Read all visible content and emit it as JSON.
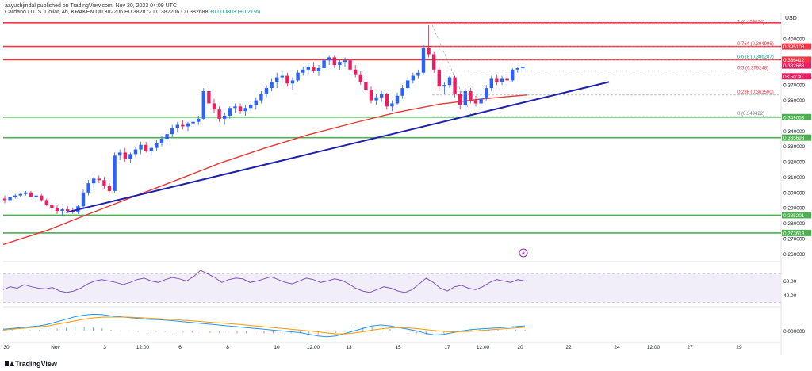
{
  "header": {
    "line1": "aayushjindal published on TradingView.com, Nov 20, 2023 04:09 UTC",
    "symbol": "Cardano / U. S. Dollar, 4h, KRAKEN",
    "ohlc": "O0.382206 H0.382872 L0.382206 C0.382688",
    "change": "+0.000803 (+0.21%)"
  },
  "axis_currency": "USD",
  "footer": {
    "brand": "TradingView"
  },
  "colors": {
    "up": "#2962ff",
    "down": "#e91e63",
    "resistance": "#f23645",
    "support": "#4caf50",
    "trendline": "#1e22aa",
    "ma": "#e53935",
    "rsi": "#7e57c2",
    "macd": "#2196f3",
    "signal": "#ff9800"
  },
  "chart_data": {
    "type": "candlestick",
    "x_ticks": [
      "30",
      "Nov",
      "3",
      "12:00",
      "6",
      "8",
      "10",
      "12:00",
      "13",
      "15",
      "17",
      "12:00",
      "20",
      "22",
      "24",
      "12:00",
      "27",
      "29"
    ],
    "y_ticks": [
      "0.400000",
      "0.370000",
      "0.360000",
      "0.340000",
      "0.330000",
      "0.320000",
      "0.310000",
      "0.300000",
      "0.290000",
      "0.280000",
      "0.270000",
      "0.260000"
    ],
    "ylim": [
      0.256,
      0.414
    ],
    "price_labels": [
      {
        "value": 0.395108,
        "text": "0.395108",
        "kind": "resistance"
      },
      {
        "value": 0.386412,
        "text": "0.386412",
        "kind": "resistance"
      },
      {
        "value": 0.382688,
        "text": "0.382688",
        "kind": "current"
      },
      {
        "value": 0.379248,
        "text": "03:50:30",
        "kind": "countdown"
      },
      {
        "value": 0.349058,
        "text": "0.349058",
        "kind": "support"
      },
      {
        "value": 0.335698,
        "text": "0.335698",
        "kind": "support"
      },
      {
        "value": 0.285201,
        "text": "0.285201",
        "kind": "support"
      },
      {
        "value": 0.273619,
        "text": "0.273619",
        "kind": "support"
      }
    ],
    "fib_levels": [
      {
        "label": "1 (0.409074)",
        "value": 0.409074
      },
      {
        "label": "0.764 (0.394996)",
        "value": 0.394996
      },
      {
        "label": "0.618 (0.386287)",
        "value": 0.386287
      },
      {
        "label": "0.5 (0.379248)",
        "value": 0.379248
      },
      {
        "label": "0.236 (0.363500)",
        "value": 0.3635
      },
      {
        "label": "0 (0.349422)",
        "value": 0.349422
      }
    ],
    "horizontal_lines": [
      {
        "value": 0.4105,
        "kind": "resistance"
      },
      {
        "value": 0.3951,
        "kind": "resistance"
      },
      {
        "value": 0.3864,
        "kind": "resistance"
      },
      {
        "value": 0.349,
        "kind": "support"
      },
      {
        "value": 0.3357,
        "kind": "support"
      },
      {
        "value": 0.2852,
        "kind": "support"
      },
      {
        "value": 0.2736,
        "kind": "support"
      }
    ],
    "candles": [
      [
        0.296,
        0.298,
        0.293,
        0.295
      ],
      [
        0.295,
        0.298,
        0.294,
        0.297
      ],
      [
        0.297,
        0.299,
        0.296,
        0.298
      ],
      [
        0.298,
        0.3,
        0.297,
        0.299
      ],
      [
        0.299,
        0.301,
        0.298,
        0.3
      ],
      [
        0.3,
        0.301,
        0.297,
        0.297
      ],
      [
        0.297,
        0.299,
        0.295,
        0.298
      ],
      [
        0.298,
        0.299,
        0.294,
        0.295
      ],
      [
        0.295,
        0.296,
        0.291,
        0.292
      ],
      [
        0.292,
        0.294,
        0.289,
        0.29
      ],
      [
        0.29,
        0.292,
        0.286,
        0.288
      ],
      [
        0.288,
        0.29,
        0.285,
        0.289
      ],
      [
        0.289,
        0.291,
        0.287,
        0.288
      ],
      [
        0.288,
        0.29,
        0.286,
        0.287
      ],
      [
        0.287,
        0.292,
        0.286,
        0.291
      ],
      [
        0.291,
        0.302,
        0.29,
        0.3
      ],
      [
        0.3,
        0.308,
        0.298,
        0.306
      ],
      [
        0.306,
        0.31,
        0.303,
        0.309
      ],
      [
        0.309,
        0.311,
        0.306,
        0.308
      ],
      [
        0.308,
        0.31,
        0.302,
        0.304
      ],
      [
        0.304,
        0.306,
        0.3,
        0.301
      ],
      [
        0.301,
        0.326,
        0.3,
        0.324
      ],
      [
        0.324,
        0.328,
        0.321,
        0.326
      ],
      [
        0.326,
        0.329,
        0.32,
        0.322
      ],
      [
        0.322,
        0.326,
        0.319,
        0.325
      ],
      [
        0.325,
        0.33,
        0.323,
        0.328
      ],
      [
        0.328,
        0.333,
        0.325,
        0.331
      ],
      [
        0.331,
        0.333,
        0.326,
        0.327
      ],
      [
        0.327,
        0.33,
        0.324,
        0.329
      ],
      [
        0.329,
        0.334,
        0.327,
        0.332
      ],
      [
        0.332,
        0.337,
        0.33,
        0.335
      ],
      [
        0.335,
        0.34,
        0.332,
        0.338
      ],
      [
        0.338,
        0.344,
        0.336,
        0.342
      ],
      [
        0.342,
        0.346,
        0.339,
        0.344
      ],
      [
        0.344,
        0.347,
        0.341,
        0.343
      ],
      [
        0.343,
        0.346,
        0.34,
        0.345
      ],
      [
        0.345,
        0.348,
        0.343,
        0.346
      ],
      [
        0.346,
        0.35,
        0.344,
        0.348
      ],
      [
        0.348,
        0.368,
        0.347,
        0.366
      ],
      [
        0.366,
        0.368,
        0.356,
        0.358
      ],
      [
        0.358,
        0.361,
        0.352,
        0.354
      ],
      [
        0.354,
        0.356,
        0.346,
        0.348
      ],
      [
        0.348,
        0.352,
        0.344,
        0.35
      ],
      [
        0.35,
        0.356,
        0.348,
        0.355
      ],
      [
        0.355,
        0.358,
        0.352,
        0.356
      ],
      [
        0.356,
        0.358,
        0.351,
        0.353
      ],
      [
        0.353,
        0.357,
        0.35,
        0.355
      ],
      [
        0.355,
        0.358,
        0.353,
        0.357
      ],
      [
        0.357,
        0.362,
        0.354,
        0.36
      ],
      [
        0.36,
        0.366,
        0.358,
        0.364
      ],
      [
        0.364,
        0.37,
        0.362,
        0.368
      ],
      [
        0.368,
        0.374,
        0.366,
        0.372
      ],
      [
        0.372,
        0.378,
        0.368,
        0.375
      ],
      [
        0.375,
        0.379,
        0.371,
        0.376
      ],
      [
        0.376,
        0.378,
        0.369,
        0.371
      ],
      [
        0.371,
        0.375,
        0.367,
        0.373
      ],
      [
        0.373,
        0.38,
        0.372,
        0.378
      ],
      [
        0.378,
        0.382,
        0.376,
        0.38
      ],
      [
        0.38,
        0.384,
        0.377,
        0.382
      ],
      [
        0.382,
        0.385,
        0.378,
        0.379
      ],
      [
        0.379,
        0.383,
        0.376,
        0.381
      ],
      [
        0.381,
        0.387,
        0.38,
        0.386
      ],
      [
        0.386,
        0.389,
        0.383,
        0.388
      ],
      [
        0.388,
        0.389,
        0.381,
        0.383
      ],
      [
        0.383,
        0.386,
        0.38,
        0.385
      ],
      [
        0.385,
        0.388,
        0.382,
        0.386
      ],
      [
        0.386,
        0.387,
        0.378,
        0.38
      ],
      [
        0.38,
        0.383,
        0.375,
        0.377
      ],
      [
        0.377,
        0.379,
        0.37,
        0.372
      ],
      [
        0.372,
        0.374,
        0.365,
        0.367
      ],
      [
        0.367,
        0.369,
        0.358,
        0.36
      ],
      [
        0.36,
        0.364,
        0.357,
        0.362
      ],
      [
        0.362,
        0.366,
        0.359,
        0.364
      ],
      [
        0.364,
        0.365,
        0.354,
        0.356
      ],
      [
        0.356,
        0.36,
        0.353,
        0.358
      ],
      [
        0.358,
        0.365,
        0.357,
        0.363
      ],
      [
        0.363,
        0.37,
        0.361,
        0.368
      ],
      [
        0.368,
        0.375,
        0.366,
        0.373
      ],
      [
        0.373,
        0.378,
        0.371,
        0.376
      ],
      [
        0.376,
        0.38,
        0.374,
        0.378
      ],
      [
        0.378,
        0.396,
        0.377,
        0.394
      ],
      [
        0.394,
        0.409,
        0.388,
        0.39
      ],
      [
        0.39,
        0.392,
        0.378,
        0.38
      ],
      [
        0.38,
        0.382,
        0.366,
        0.369
      ],
      [
        0.369,
        0.372,
        0.364,
        0.37
      ],
      [
        0.37,
        0.376,
        0.368,
        0.375
      ],
      [
        0.375,
        0.376,
        0.362,
        0.364
      ],
      [
        0.364,
        0.366,
        0.354,
        0.357
      ],
      [
        0.357,
        0.368,
        0.356,
        0.366
      ],
      [
        0.366,
        0.368,
        0.358,
        0.36
      ],
      [
        0.36,
        0.363,
        0.356,
        0.358
      ],
      [
        0.358,
        0.362,
        0.356,
        0.361
      ],
      [
        0.361,
        0.37,
        0.36,
        0.368
      ],
      [
        0.368,
        0.376,
        0.366,
        0.374
      ],
      [
        0.374,
        0.377,
        0.37,
        0.372
      ],
      [
        0.372,
        0.376,
        0.37,
        0.374
      ],
      [
        0.374,
        0.377,
        0.371,
        0.373
      ],
      [
        0.373,
        0.381,
        0.372,
        0.38
      ],
      [
        0.38,
        0.382,
        0.378,
        0.381
      ],
      [
        0.381,
        0.383,
        0.38,
        0.382
      ]
    ],
    "ma": [
      0.2661,
      0.2752,
      0.2864,
      0.2974,
      0.3083,
      0.3194,
      0.3289,
      0.3376,
      0.345,
      0.352,
      0.3575,
      0.361,
      0.3635
    ],
    "trendline": {
      "from": [
        9,
        0.287
      ],
      "to": [
        112,
        0.372
      ]
    },
    "rsi": {
      "ticks": [
        "60.00",
        "40.00"
      ],
      "range": [
        25,
        85
      ],
      "band": [
        30,
        70
      ],
      "values": [
        48,
        52,
        50,
        55,
        52,
        50,
        49,
        51,
        46,
        44,
        46,
        50,
        56,
        60,
        62,
        60,
        58,
        55,
        58,
        62,
        64,
        60,
        58,
        62,
        65,
        63,
        60,
        66,
        75,
        70,
        65,
        58,
        62,
        64,
        63,
        58,
        60,
        63,
        66,
        62,
        58,
        56,
        60,
        64,
        62,
        58,
        60,
        63,
        61,
        56,
        50,
        46,
        44,
        48,
        52,
        50,
        46,
        44,
        48,
        56,
        64,
        58,
        50,
        46,
        52,
        54,
        50,
        48,
        52,
        58,
        62,
        60,
        58,
        62,
        60
      ]
    },
    "macd": {
      "ticks": [
        "0.000000"
      ],
      "range": [
        -0.006,
        0.014
      ],
      "macd": [
        0.001,
        0.0015,
        0.002,
        0.0025,
        0.003,
        0.004,
        0.0055,
        0.007,
        0.0085,
        0.0095,
        0.01,
        0.0098,
        0.009,
        0.0085,
        0.008,
        0.0075,
        0.007,
        0.0068,
        0.0065,
        0.006,
        0.0055,
        0.005,
        0.0045,
        0.004,
        0.0035,
        0.003,
        0.0025,
        0.002,
        0.0015,
        0.001,
        0.0005,
        0,
        -0.0005,
        -0.001,
        -0.002,
        -0.003,
        -0.0035,
        -0.003,
        -0.0015,
        0,
        0.0015,
        0.003,
        0.0035,
        0.003,
        0.002,
        0.001,
        0,
        -0.0015,
        -0.0025,
        -0.002,
        -0.001,
        0,
        0.0008,
        0.0012,
        0.0015,
        0.0018,
        0.0022,
        0.0026,
        0.003
      ],
      "signal": [
        0.0005,
        0.001,
        0.0015,
        0.002,
        0.0025,
        0.003,
        0.004,
        0.005,
        0.006,
        0.007,
        0.0078,
        0.0082,
        0.0083,
        0.0083,
        0.0082,
        0.008,
        0.0077,
        0.0074,
        0.0071,
        0.0068,
        0.0064,
        0.006,
        0.0056,
        0.0052,
        0.0048,
        0.0044,
        0.004,
        0.0035,
        0.003,
        0.0025,
        0.002,
        0.0015,
        0.001,
        0.0005,
        0,
        -0.0005,
        -0.0012,
        -0.0018,
        -0.0018,
        -0.0012,
        -0.0005,
        0.0005,
        0.0012,
        0.0018,
        0.002,
        0.0018,
        0.0014,
        0.0008,
        0.0002,
        -0.0003,
        -0.0005,
        -0.0004,
        -0.0002,
        0.0002,
        0.0006,
        0.001,
        0.0014,
        0.0018,
        0.0022
      ]
    }
  }
}
